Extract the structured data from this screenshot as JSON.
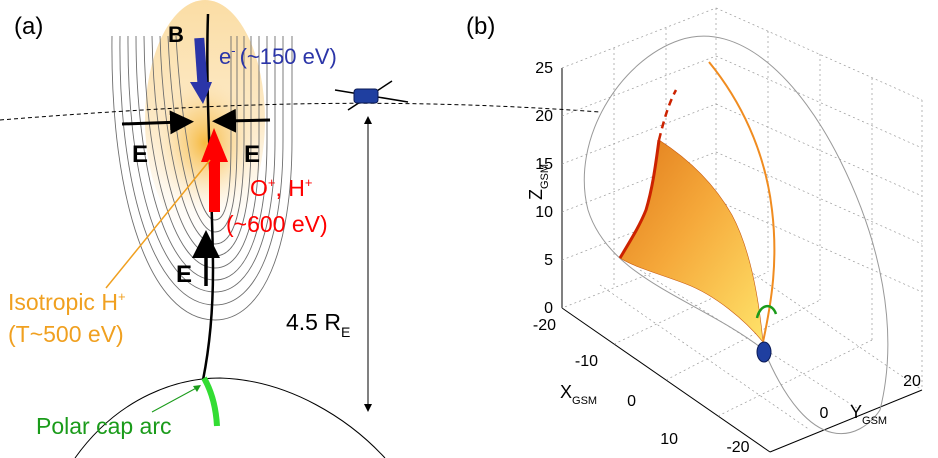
{
  "panel_a": {
    "label": "(a)",
    "b_label": "B",
    "electron_label": "e",
    "electron_sup": "-",
    "electron_energy": "(~150 eV)",
    "e_label_left": "E",
    "e_label_right": "E",
    "e_label_lower": "E",
    "ion_label": "O",
    "ion_sup1": "+",
    "ion_label2": ", H",
    "ion_sup2": "+",
    "ion_energy": "(~600 eV)",
    "isotropic_label": "Isotropic H",
    "isotropic_sup": "+",
    "isotropic_temp": "(T~500 eV)",
    "distance_value": "4.5 R",
    "distance_sub": "E",
    "polar_cap_label": "Polar cap arc",
    "colors": {
      "electron": "#2b35a8",
      "ion": "#ff0000",
      "isotropic": "#f0a020",
      "polar_cap": "#1a9b1a",
      "arc_green": "#33dd33",
      "satellite": "#1f3fa0"
    }
  },
  "panel_b": {
    "label": "(b)",
    "z_axis_label": "Z",
    "z_axis_sub": "GSM",
    "x_axis_label": "X",
    "x_axis_sub": "GSM",
    "y_axis_label": "Y",
    "y_axis_sub": "GSM",
    "z_ticks": [
      "25",
      "20",
      "15",
      "10",
      "5",
      "0"
    ],
    "x_ticks": [
      "-20",
      "-10",
      "0",
      "10"
    ],
    "y_ticks": [
      "-20",
      "0",
      "20"
    ]
  }
}
